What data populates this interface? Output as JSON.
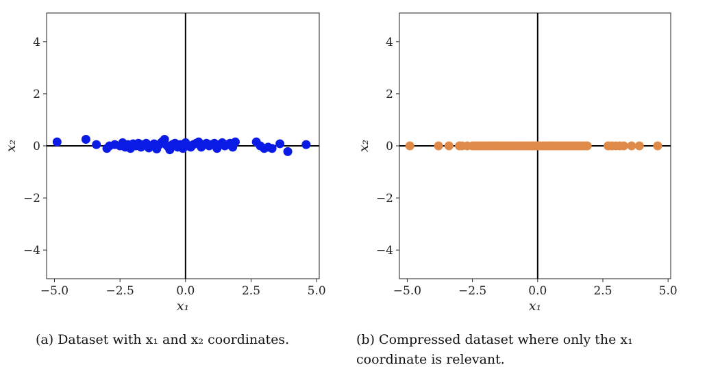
{
  "captions": {
    "a": "(a) Dataset with x₁ and x₂ coordinates.",
    "b": "(b) Compressed dataset where only the x₁ coordinate is relevant."
  },
  "chart_data": [
    {
      "type": "scatter",
      "panel": "a",
      "title": "",
      "xlabel": "x₁",
      "ylabel": "x₂",
      "xlim": [
        -5.3,
        5.1
      ],
      "ylim": [
        -5.1,
        5.1
      ],
      "xticks": [
        -5.0,
        -2.5,
        0.0,
        2.5,
        5.0
      ],
      "xtick_labels": [
        "−5.0",
        "−2.5",
        "0.0",
        "2.5",
        "5.0"
      ],
      "yticks": [
        -4,
        -2,
        0,
        2,
        4
      ],
      "ytick_labels": [
        "−4",
        "−2",
        "0",
        "2",
        "4"
      ],
      "grid": false,
      "reference_lines": [
        "x=0",
        "y=0"
      ],
      "color": "#0a1be6",
      "series": [
        {
          "x": [
            -4.9,
            -3.8,
            -3.4,
            -3.0,
            -2.9,
            -2.7,
            -2.5,
            -2.4,
            -2.3,
            -2.2,
            -2.1,
            -2.0,
            -1.9,
            -1.8,
            -1.7,
            -1.6,
            -1.5,
            -1.4,
            -1.3,
            -1.2,
            -1.1,
            -1.0,
            -0.9,
            -0.8,
            -0.7,
            -0.6,
            -0.5,
            -0.4,
            -0.3,
            -0.2,
            -0.1,
            0.0,
            0.1,
            0.2,
            0.3,
            0.4,
            0.5,
            0.6,
            0.7,
            0.8,
            0.9,
            1.0,
            1.1,
            1.2,
            1.3,
            1.4,
            1.5,
            1.6,
            1.7,
            1.8,
            1.9,
            2.7,
            2.85,
            3.0,
            3.15,
            3.3,
            3.6,
            3.9,
            4.6
          ],
          "y": [
            0.15,
            0.25,
            0.05,
            -0.1,
            0.0,
            0.05,
            0.0,
            0.12,
            -0.05,
            0.05,
            -0.1,
            0.08,
            0.0,
            0.1,
            -0.05,
            0.05,
            0.1,
            -0.08,
            0.0,
            0.08,
            -0.12,
            0.05,
            0.15,
            0.25,
            0.0,
            -0.15,
            0.05,
            0.1,
            -0.05,
            0.05,
            -0.1,
            0.12,
            0.0,
            -0.05,
            0.05,
            0.1,
            0.15,
            -0.05,
            0.05,
            0.1,
            0.0,
            0.05,
            0.1,
            -0.1,
            0.05,
            0.12,
            0.0,
            0.05,
            0.1,
            -0.05,
            0.15,
            0.15,
            0.0,
            -0.1,
            -0.05,
            -0.1,
            0.08,
            -0.22,
            0.05
          ]
        }
      ]
    },
    {
      "type": "scatter",
      "panel": "b",
      "title": "",
      "xlabel": "x₁",
      "ylabel": "x₂",
      "xlim": [
        -5.3,
        5.1
      ],
      "ylim": [
        -5.1,
        5.1
      ],
      "xticks": [
        -5.0,
        -2.5,
        0.0,
        2.5,
        5.0
      ],
      "xtick_labels": [
        "−5.0",
        "−2.5",
        "0.0",
        "2.5",
        "5.0"
      ],
      "yticks": [
        -4,
        -2,
        0,
        2,
        4
      ],
      "ytick_labels": [
        "−4",
        "−2",
        "0",
        "2",
        "4"
      ],
      "grid": false,
      "reference_lines": [
        "x=0",
        "y=0"
      ],
      "color": "#e08a4a",
      "series": [
        {
          "x": [
            -4.9,
            -3.8,
            -3.4,
            -3.0,
            -2.9,
            -2.7,
            -2.5,
            -2.4,
            -2.3,
            -2.2,
            -2.1,
            -2.0,
            -1.9,
            -1.8,
            -1.7,
            -1.6,
            -1.5,
            -1.4,
            -1.3,
            -1.2,
            -1.1,
            -1.0,
            -0.9,
            -0.8,
            -0.7,
            -0.6,
            -0.5,
            -0.4,
            -0.3,
            -0.2,
            -0.1,
            0.0,
            0.1,
            0.2,
            0.3,
            0.4,
            0.5,
            0.6,
            0.7,
            0.8,
            0.9,
            1.0,
            1.1,
            1.2,
            1.3,
            1.4,
            1.5,
            1.6,
            1.7,
            1.8,
            1.9,
            2.7,
            2.85,
            3.0,
            3.15,
            3.3,
            3.6,
            3.9,
            4.6
          ],
          "y": [
            0,
            0,
            0,
            0,
            0,
            0,
            0,
            0,
            0,
            0,
            0,
            0,
            0,
            0,
            0,
            0,
            0,
            0,
            0,
            0,
            0,
            0,
            0,
            0,
            0,
            0,
            0,
            0,
            0,
            0,
            0,
            0,
            0,
            0,
            0,
            0,
            0,
            0,
            0,
            0,
            0,
            0,
            0,
            0,
            0,
            0,
            0,
            0,
            0,
            0,
            0,
            0,
            0,
            0,
            0,
            0,
            0,
            0,
            0
          ]
        }
      ]
    }
  ]
}
